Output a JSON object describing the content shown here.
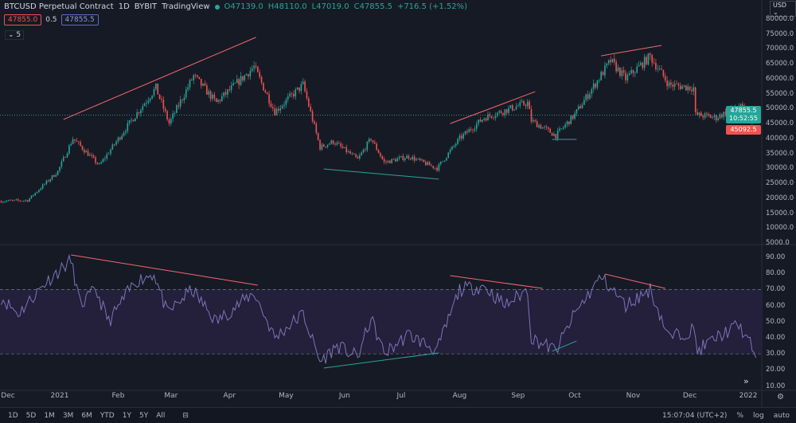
{
  "header": {
    "symbol": "BTCUSD Perpetual Contract",
    "interval": "1D",
    "exchange": "BYBIT",
    "source": "TradingView",
    "open": "O47139.0",
    "high": "H48110.0",
    "low": "L47019.0",
    "close": "C47855.5",
    "change": "+716.5 (+1.52%)"
  },
  "order": {
    "sell": "47855.0",
    "spread": "0.5",
    "buy": "47855.5"
  },
  "indicators_toggle": "⌄ 5",
  "currency": "USD ⌄",
  "price_axis": [
    "80000.0",
    "75000.0",
    "70000.0",
    "65000.0",
    "60000.0",
    "55000.0",
    "50000.0",
    "45000.0",
    "40000.0",
    "35000.0",
    "30000.0",
    "25000.0",
    "20000.0",
    "15000.0",
    "10000.0",
    "5000.0"
  ],
  "rsi_axis": [
    "90.00",
    "80.00",
    "70.00",
    "60.00",
    "50.00",
    "40.00",
    "30.00",
    "20.00",
    "10.00"
  ],
  "price_labels": {
    "last": "47855.5",
    "countdown": "10:52:55",
    "low": "45092.5"
  },
  "time_axis": [
    {
      "t": "Dec",
      "d": "2020-12-01"
    },
    {
      "t": "2021",
      "d": "2021-01-01"
    },
    {
      "t": "Feb",
      "d": "2021-02-01"
    },
    {
      "t": "Mar",
      "d": "2021-03-01"
    },
    {
      "t": "Apr",
      "d": "2021-04-01"
    },
    {
      "t": "May",
      "d": "2021-05-01"
    },
    {
      "t": "Jun",
      "d": "2021-06-01"
    },
    {
      "t": "Jul",
      "d": "2021-07-01"
    },
    {
      "t": "Aug",
      "d": "2021-08-01"
    },
    {
      "t": "Sep",
      "d": "2021-09-01"
    },
    {
      "t": "Oct",
      "d": "2021-10-01"
    },
    {
      "t": "Nov",
      "d": "2021-11-01"
    },
    {
      "t": "Dec",
      "d": "2021-12-01"
    },
    {
      "t": "2022",
      "d": "2022-01-01"
    }
  ],
  "toolbar": {
    "ranges": [
      "1D",
      "5D",
      "1M",
      "3M",
      "6M",
      "YTD",
      "1Y",
      "5Y",
      "All"
    ],
    "time": "15:07:04 (UTC+2)",
    "percent": "%",
    "log": "log",
    "auto": "auto"
  },
  "colors": {
    "up": "#26a69a",
    "down": "#ef5350",
    "rsi": "#7e74b8",
    "band": "#241f3a",
    "trend_red": "#f06b6b",
    "trend_green": "#26a69a"
  },
  "chart_data": {
    "type": "candlestick",
    "price_path": [
      [
        "2020-12-01",
        19000
      ],
      [
        "2020-12-15",
        19300
      ],
      [
        "2020-12-31",
        29000
      ],
      [
        "2021-01-08",
        40000
      ],
      [
        "2021-01-22",
        31000
      ],
      [
        "2021-02-08",
        46000
      ],
      [
        "2021-02-21",
        57000
      ],
      [
        "2021-02-28",
        45000
      ],
      [
        "2021-03-13",
        61000
      ],
      [
        "2021-03-25",
        52000
      ],
      [
        "2021-04-14",
        64000
      ],
      [
        "2021-04-25",
        49000
      ],
      [
        "2021-05-10",
        58000
      ],
      [
        "2021-05-19",
        37000
      ],
      [
        "2021-05-26",
        39000
      ],
      [
        "2021-06-08",
        33000
      ],
      [
        "2021-06-15",
        40000
      ],
      [
        "2021-06-22",
        32000
      ],
      [
        "2021-07-05",
        34000
      ],
      [
        "2021-07-20",
        30000
      ],
      [
        "2021-08-01",
        40000
      ],
      [
        "2021-08-14",
        47000
      ],
      [
        "2021-09-06",
        52000
      ],
      [
        "2021-09-08",
        46000
      ],
      [
        "2021-09-21",
        41000
      ],
      [
        "2021-10-01",
        48000
      ],
      [
        "2021-10-20",
        66000
      ],
      [
        "2021-10-28",
        60000
      ],
      [
        "2021-11-10",
        67500
      ],
      [
        "2021-11-20",
        58000
      ],
      [
        "2021-12-03",
        57000
      ],
      [
        "2021-12-04",
        48000
      ],
      [
        "2021-12-15",
        47000
      ],
      [
        "2021-12-27",
        51000
      ],
      [
        "2022-01-05",
        45092
      ]
    ],
    "rsi_path": [
      [
        "2020-12-01",
        65
      ],
      [
        "2020-12-10",
        55
      ],
      [
        "2020-12-25",
        75
      ],
      [
        "2021-01-07",
        88
      ],
      [
        "2021-01-12",
        60
      ],
      [
        "2021-01-20",
        70
      ],
      [
        "2021-01-27",
        50
      ],
      [
        "2021-02-10",
        75
      ],
      [
        "2021-02-20",
        80
      ],
      [
        "2021-02-27",
        55
      ],
      [
        "2021-03-12",
        70
      ],
      [
        "2021-03-25",
        50
      ],
      [
        "2021-04-14",
        68
      ],
      [
        "2021-04-25",
        40
      ],
      [
        "2021-05-10",
        55
      ],
      [
        "2021-05-19",
        25
      ],
      [
        "2021-05-28",
        35
      ],
      [
        "2021-06-08",
        28
      ],
      [
        "2021-06-15",
        52
      ],
      [
        "2021-06-22",
        30
      ],
      [
        "2021-07-05",
        42
      ],
      [
        "2021-07-20",
        32
      ],
      [
        "2021-08-01",
        70
      ],
      [
        "2021-08-14",
        72
      ],
      [
        "2021-08-25",
        60
      ],
      [
        "2021-09-06",
        70
      ],
      [
        "2021-09-08",
        40
      ],
      [
        "2021-09-21",
        32
      ],
      [
        "2021-10-01",
        55
      ],
      [
        "2021-10-15",
        78
      ],
      [
        "2021-10-28",
        60
      ],
      [
        "2021-11-10",
        70
      ],
      [
        "2021-11-20",
        40
      ],
      [
        "2021-12-03",
        45
      ],
      [
        "2021-12-05",
        32
      ],
      [
        "2021-12-15",
        40
      ],
      [
        "2021-12-27",
        48
      ],
      [
        "2022-01-05",
        30
      ]
    ],
    "rsi_levels": [
      70,
      30
    ],
    "price_range": [
      5000,
      80000
    ],
    "rsi_range": [
      10,
      90
    ],
    "drawings_price": [
      {
        "c": "red",
        "a": [
          "2021-01-03",
          46400
        ],
        "b": [
          "2021-04-15",
          73900
        ]
      },
      {
        "c": "red",
        "a": [
          "2021-07-27",
          45000
        ],
        "b": [
          "2021-09-10",
          55700
        ]
      },
      {
        "c": "red",
        "a": [
          "2021-10-15",
          67700
        ],
        "b": [
          "2021-11-16",
          71200
        ]
      },
      {
        "c": "green",
        "a": [
          "2021-05-21",
          29800
        ],
        "b": [
          "2021-07-21",
          26400
        ]
      },
      {
        "c": "green",
        "a": [
          "2021-09-19",
          39700
        ],
        "b": [
          "2021-10-02",
          39700
        ]
      }
    ],
    "drawings_rsi": [
      {
        "c": "red",
        "a": [
          "2021-01-07",
          91.5
        ],
        "b": [
          "2021-04-16",
          72.7
        ]
      },
      {
        "c": "red",
        "a": [
          "2021-07-27",
          78.6
        ],
        "b": [
          "2021-09-14",
          70.7
        ]
      },
      {
        "c": "red",
        "a": [
          "2021-10-17",
          79.6
        ],
        "b": [
          "2021-11-18",
          70.7
        ]
      },
      {
        "c": "green",
        "a": [
          "2021-05-21",
          21.2
        ],
        "b": [
          "2021-07-21",
          30.6
        ]
      },
      {
        "c": "green",
        "a": [
          "2021-09-19",
          31.6
        ],
        "b": [
          "2021-10-02",
          38
        ]
      }
    ]
  }
}
